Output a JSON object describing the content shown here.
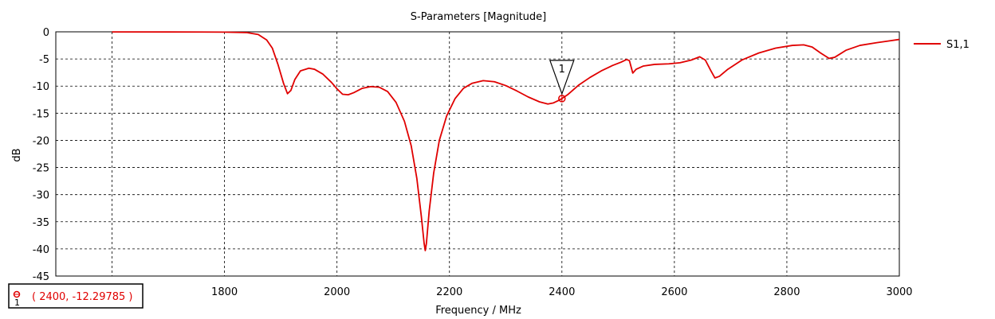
{
  "chart_data": {
    "type": "line",
    "title": "S-Parameters [Magnitude]",
    "xlabel": "Frequency / MHz",
    "ylabel": "dB",
    "xlim": [
      1500,
      3000
    ],
    "ylim": [
      -45,
      0
    ],
    "x_ticks": [
      1600,
      1800,
      2000,
      2200,
      2400,
      2600,
      2800,
      3000
    ],
    "y_ticks": [
      0,
      -5,
      -10,
      -15,
      -20,
      -25,
      -30,
      -35,
      -40,
      -45
    ],
    "grid": true,
    "legend_position": "top-right",
    "series": [
      {
        "name": "S1,1",
        "color": "#e00000",
        "points": [
          [
            1600,
            -0.02
          ],
          [
            1700,
            -0.03
          ],
          [
            1800,
            -0.05
          ],
          [
            1840,
            -0.15
          ],
          [
            1860,
            -0.5
          ],
          [
            1875,
            -1.5
          ],
          [
            1885,
            -3.0
          ],
          [
            1895,
            -6.0
          ],
          [
            1905,
            -9.5
          ],
          [
            1912,
            -11.4
          ],
          [
            1918,
            -10.8
          ],
          [
            1925,
            -8.8
          ],
          [
            1935,
            -7.2
          ],
          [
            1950,
            -6.7
          ],
          [
            1960,
            -6.9
          ],
          [
            1975,
            -7.8
          ],
          [
            1990,
            -9.3
          ],
          [
            2000,
            -10.5
          ],
          [
            2010,
            -11.5
          ],
          [
            2020,
            -11.6
          ],
          [
            2030,
            -11.2
          ],
          [
            2045,
            -10.4
          ],
          [
            2060,
            -10.1
          ],
          [
            2075,
            -10.2
          ],
          [
            2090,
            -11.0
          ],
          [
            2105,
            -13.0
          ],
          [
            2120,
            -16.5
          ],
          [
            2132,
            -21.0
          ],
          [
            2142,
            -27.0
          ],
          [
            2150,
            -34.0
          ],
          [
            2155,
            -39.0
          ],
          [
            2157,
            -40.3
          ],
          [
            2159,
            -39.0
          ],
          [
            2164,
            -33.0
          ],
          [
            2172,
            -26.0
          ],
          [
            2182,
            -20.0
          ],
          [
            2195,
            -15.5
          ],
          [
            2210,
            -12.3
          ],
          [
            2225,
            -10.4
          ],
          [
            2240,
            -9.5
          ],
          [
            2260,
            -9.0
          ],
          [
            2280,
            -9.2
          ],
          [
            2300,
            -9.9
          ],
          [
            2320,
            -10.9
          ],
          [
            2340,
            -12.0
          ],
          [
            2360,
            -12.9
          ],
          [
            2375,
            -13.3
          ],
          [
            2385,
            -13.1
          ],
          [
            2395,
            -12.6
          ],
          [
            2400,
            -12.3
          ],
          [
            2410,
            -11.6
          ],
          [
            2430,
            -9.8
          ],
          [
            2450,
            -8.4
          ],
          [
            2470,
            -7.2
          ],
          [
            2490,
            -6.2
          ],
          [
            2505,
            -5.6
          ],
          [
            2515,
            -5.1
          ],
          [
            2520,
            -5.3
          ],
          [
            2526,
            -7.6
          ],
          [
            2532,
            -6.9
          ],
          [
            2545,
            -6.3
          ],
          [
            2565,
            -6.0
          ],
          [
            2590,
            -5.9
          ],
          [
            2610,
            -5.7
          ],
          [
            2630,
            -5.2
          ],
          [
            2645,
            -4.6
          ],
          [
            2655,
            -5.2
          ],
          [
            2665,
            -7.2
          ],
          [
            2672,
            -8.5
          ],
          [
            2680,
            -8.2
          ],
          [
            2695,
            -6.9
          ],
          [
            2720,
            -5.2
          ],
          [
            2750,
            -3.9
          ],
          [
            2780,
            -3.0
          ],
          [
            2810,
            -2.5
          ],
          [
            2830,
            -2.4
          ],
          [
            2845,
            -2.8
          ],
          [
            2860,
            -3.9
          ],
          [
            2875,
            -4.9
          ],
          [
            2885,
            -4.7
          ],
          [
            2905,
            -3.4
          ],
          [
            2930,
            -2.5
          ],
          [
            2960,
            -2.0
          ],
          [
            2980,
            -1.7
          ],
          [
            3000,
            -1.4
          ]
        ]
      }
    ],
    "marker": {
      "id": "1",
      "x": 2400,
      "y": -12.29785,
      "readout": "( 2400, -12.29785 )"
    }
  }
}
